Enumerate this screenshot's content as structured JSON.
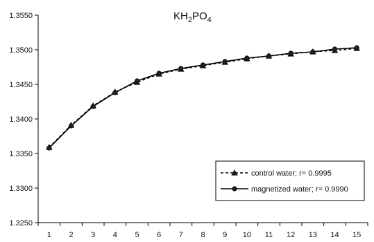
{
  "chart_data": {
    "type": "line",
    "title": {
      "main": "KH",
      "sub1": "2",
      "mid": "PO",
      "sub2": "4"
    },
    "xlabel": "",
    "ylabel": "",
    "categories": [
      "1",
      "2",
      "3",
      "4",
      "5",
      "6",
      "7",
      "8",
      "9",
      "10",
      "11",
      "12",
      "13",
      "14",
      "15"
    ],
    "ylim": [
      1.325,
      1.355
    ],
    "yticks": [
      "1.3250",
      "1.3300",
      "1.3350",
      "1.3400",
      "1.3450",
      "1.3500",
      "1.3550"
    ],
    "grid": false,
    "legend_position": "bottom-right",
    "series": [
      {
        "name": "control water; r= 0.9995",
        "marker": "triangle",
        "line": "dashed",
        "values": [
          1.3359,
          1.3391,
          1.3419,
          1.3439,
          1.3453,
          1.3465,
          1.3472,
          1.3477,
          1.3482,
          1.3487,
          1.3491,
          1.3494,
          1.3497,
          1.3499,
          1.3502
        ]
      },
      {
        "name": "magnetized water; r= 0.9990",
        "marker": "circle",
        "line": "solid",
        "values": [
          1.3358,
          1.339,
          1.3418,
          1.3438,
          1.3455,
          1.3466,
          1.3473,
          1.3478,
          1.3483,
          1.3488,
          1.3491,
          1.3495,
          1.3497,
          1.3501,
          1.3503
        ]
      }
    ]
  }
}
